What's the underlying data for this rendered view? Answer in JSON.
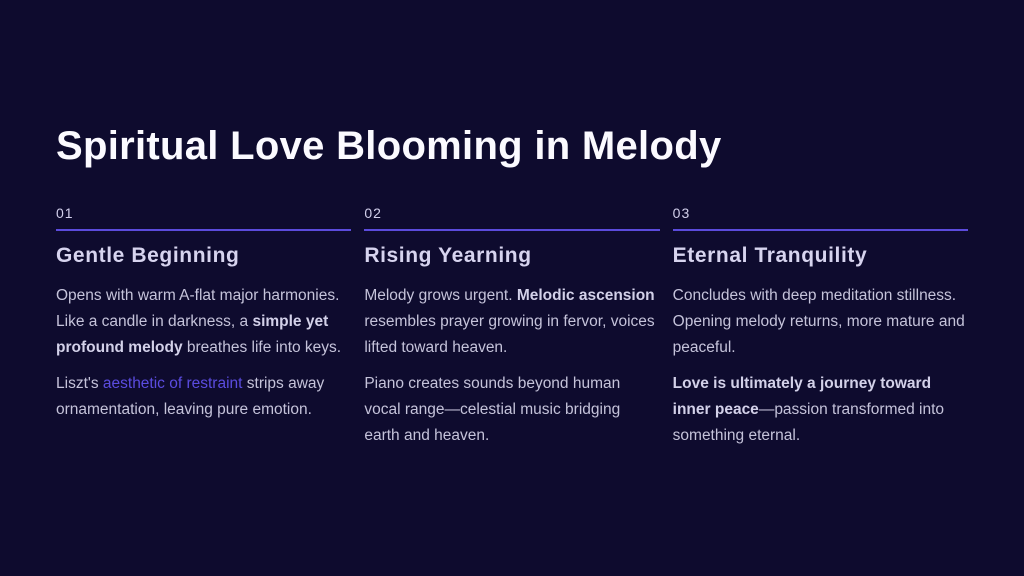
{
  "title": "Spiritual Love Blooming in Melody",
  "colors": {
    "background": "#0e0b2e",
    "title_text": "#fbfaff",
    "heading_text": "#d7d4ef",
    "body_text": "#c5c3da",
    "divider": "#5b4bdc",
    "accent_text": "#5b4ce0"
  },
  "columns": [
    {
      "number": "01",
      "heading": "Gentle Beginning",
      "paragraphs": [
        {
          "segments": [
            {
              "t": "Opens with warm A-flat major harmonies. Like a candle in darkness, a "
            },
            {
              "t": "simple yet profound melody",
              "style": "bold"
            },
            {
              "t": " breathes life into keys."
            }
          ]
        },
        {
          "segments": [
            {
              "t": "Liszt's "
            },
            {
              "t": "aesthetic of restraint",
              "style": "accent"
            },
            {
              "t": " strips away ornamentation, leaving pure emotion."
            }
          ]
        }
      ]
    },
    {
      "number": "02",
      "heading": "Rising Yearning",
      "paragraphs": [
        {
          "segments": [
            {
              "t": "Melody grows urgent. "
            },
            {
              "t": "Melodic ascension",
              "style": "bold"
            },
            {
              "t": " resembles prayer growing in fervor, voices lifted toward heaven."
            }
          ]
        },
        {
          "segments": [
            {
              "t": "Piano creates sounds beyond human vocal range—celestial music bridging earth and heaven."
            }
          ]
        }
      ]
    },
    {
      "number": "03",
      "heading": "Eternal Tranquility",
      "paragraphs": [
        {
          "segments": [
            {
              "t": "Concludes with deep meditation stillness. Opening melody returns, more mature and peaceful."
            }
          ]
        },
        {
          "segments": [
            {
              "t": "Love is ultimately a journey toward inner peace",
              "style": "bold"
            },
            {
              "t": "—passion transformed into something eternal."
            }
          ]
        }
      ]
    }
  ]
}
